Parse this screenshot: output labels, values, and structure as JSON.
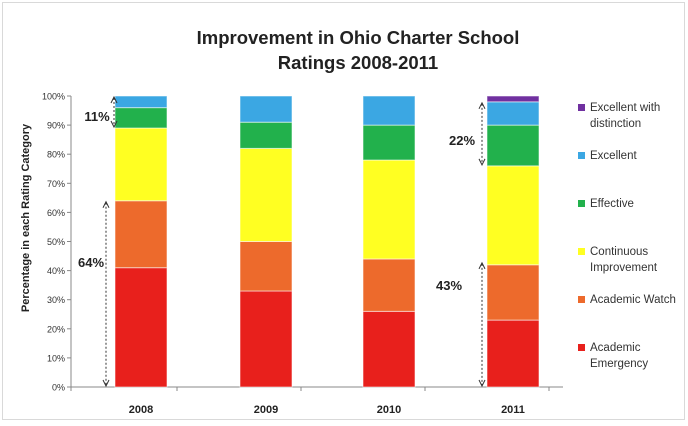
{
  "chart_data": {
    "type": "bar",
    "stacked": true,
    "title_lines": [
      "Improvement in Ohio Charter School",
      "Ratings 2008-2011"
    ],
    "ylabel": "Percentage in each Rating Category",
    "xlabel": "",
    "ylim": [
      0,
      100
    ],
    "yticks": [
      "0%",
      "10%",
      "20%",
      "30%",
      "40%",
      "50%",
      "60%",
      "70%",
      "80%",
      "90%",
      "100%"
    ],
    "categories": [
      "2008",
      "2009",
      "2010",
      "2011"
    ],
    "grid": false,
    "legend_position": "right",
    "series": [
      {
        "name": "Academic Emergency",
        "color": "#e8201c",
        "values": [
          41,
          33,
          26,
          23
        ]
      },
      {
        "name": "Academic Watch",
        "color": "#ed6a2c",
        "values": [
          23,
          17,
          18,
          19
        ]
      },
      {
        "name": "Continuous Improvement",
        "color": "#ffff22",
        "values": [
          25,
          32,
          34,
          34
        ]
      },
      {
        "name": "Effective",
        "color": "#22b14c",
        "values": [
          7,
          9,
          12,
          14
        ]
      },
      {
        "name": "Excellent",
        "color": "#3ba7e3",
        "values": [
          4,
          9,
          10,
          8
        ]
      },
      {
        "name": "Excellent with distinction",
        "color": "#7030a0",
        "values": [
          0,
          0,
          0,
          2
        ]
      }
    ],
    "annotations": [
      {
        "text": "11%",
        "category": "2008",
        "from": 89,
        "to": 100
      },
      {
        "text": "64%",
        "category": "2008",
        "from": 0,
        "to": 64
      },
      {
        "text": "22%",
        "category": "2011",
        "from": 76,
        "to": 98
      },
      {
        "text": "43%",
        "category": "2011",
        "from": 0,
        "to": 43
      }
    ]
  }
}
